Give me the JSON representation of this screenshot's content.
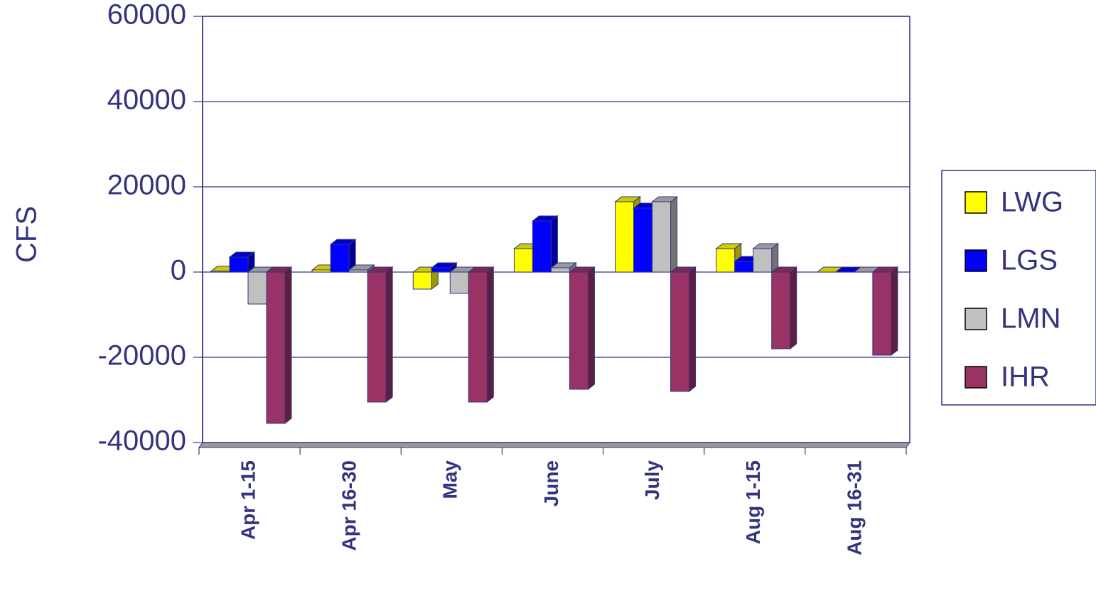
{
  "chart_data": {
    "type": "bar3d",
    "y_label": "CFS",
    "categories": [
      "Apr 1-15",
      "Apr 16-30",
      "May",
      "June",
      "July",
      "Aug 1-15",
      "Aug 16-31"
    ],
    "series": [
      {
        "name": "LWG",
        "color": "#ffff00",
        "values": [
          200,
          500,
          -4000,
          5500,
          16500,
          5500,
          0
        ]
      },
      {
        "name": "LGS",
        "color": "#0000ff",
        "values": [
          3500,
          6500,
          1000,
          12000,
          15000,
          2500,
          0
        ]
      },
      {
        "name": "LMN",
        "color": "#c0c0c0",
        "values": [
          -7500,
          500,
          -5000,
          1000,
          16500,
          5500,
          0
        ]
      },
      {
        "name": "IHR",
        "color": "#993366",
        "values": [
          -35500,
          -30500,
          -30500,
          -27500,
          -28000,
          -18000,
          -19500
        ]
      }
    ],
    "ylim": [
      -40000,
      60000
    ],
    "yticks": [
      -40000,
      -20000,
      0,
      20000,
      40000,
      60000
    ],
    "grid": true
  }
}
